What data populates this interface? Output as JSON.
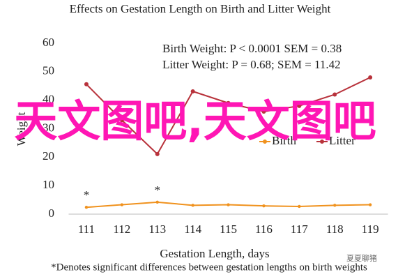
{
  "chart_data": {
    "type": "line",
    "title": "Effects on Gestation Length on Birth and Litter Weight",
    "x_label": "Gestation Length, days",
    "y_label": "Weight",
    "footnote": "*Denotes significant differences between gestation lengths on birth weights",
    "annotation_lines": [
      "Birth Weight: P < 0.0001 SEM = 0.38",
      "Litter Weight: P = 0.68; SEM = 11.42"
    ],
    "categories": [
      "111",
      "112",
      "113",
      "114",
      "115",
      "116",
      "117",
      "118",
      "119"
    ],
    "series": [
      {
        "name": "Birth",
        "color": "#f0921e",
        "values": [
          2.4,
          3.3,
          4.2,
          3.1,
          3.3,
          2.9,
          2.7,
          3.1,
          3.3
        ]
      },
      {
        "name": "Litter",
        "color": "#b8323b",
        "values": [
          45.6,
          33,
          21.1,
          43.1,
          39,
          36,
          38,
          42,
          48
        ]
      }
    ],
    "markers": [
      {
        "x": "111",
        "text": "*"
      },
      {
        "x": "113",
        "text": "*"
      }
    ],
    "ylim": [
      0,
      60
    ],
    "yticks": [
      0,
      10,
      20,
      30,
      40,
      50,
      60
    ],
    "grid": false
  },
  "overlay": "天文图吧,天文图吧",
  "watermark": "夏夏聊猪"
}
